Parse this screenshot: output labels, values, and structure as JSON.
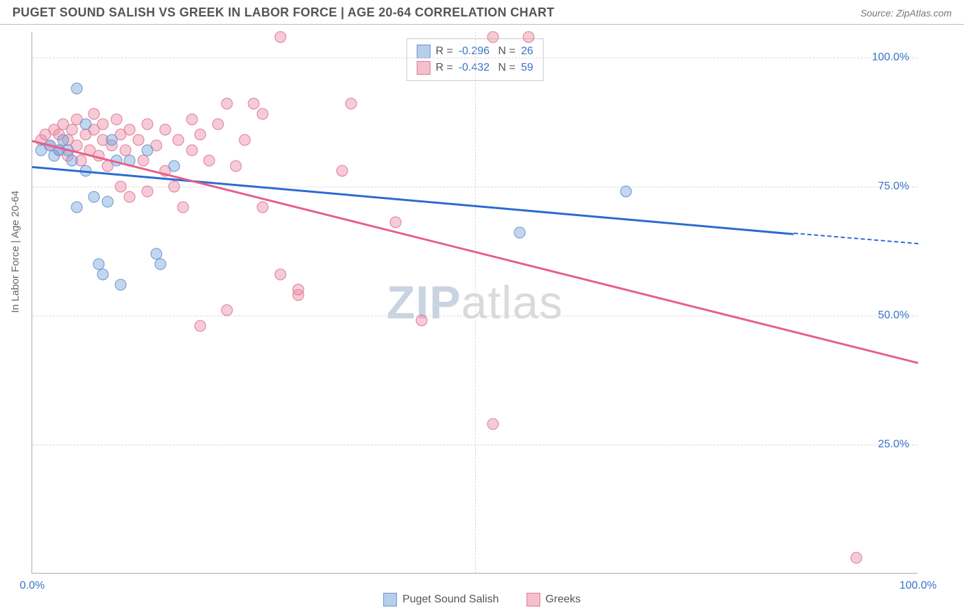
{
  "header": {
    "title": "PUGET SOUND SALISH VS GREEK IN LABOR FORCE | AGE 20-64 CORRELATION CHART",
    "source": "Source: ZipAtlas.com"
  },
  "chart": {
    "type": "scatter",
    "ylabel": "In Labor Force | Age 20-64",
    "xlim": [
      0,
      100
    ],
    "ylim": [
      0,
      105
    ],
    "xtick_labels": [
      "0.0%",
      "100.0%"
    ],
    "xtick_positions": [
      0,
      100
    ],
    "ytick_labels": [
      "25.0%",
      "50.0%",
      "75.0%",
      "100.0%"
    ],
    "ytick_positions": [
      25,
      50,
      75,
      100
    ],
    "grid_h": [
      25,
      50,
      75,
      100
    ],
    "grid_v": [
      50
    ],
    "background_color": "#ffffff",
    "grid_color": "#d8d8d8",
    "axis_color": "#aaaaaa",
    "watermark": {
      "bold": "ZIP",
      "rest": "atlas"
    },
    "series": [
      {
        "name": "Puget Sound Salish",
        "fill": "rgba(120,165,220,0.45)",
        "stroke": "#6a95cf",
        "line_color": "#2b6bd1",
        "marker_size": 17,
        "r_value": "-0.296",
        "n_value": "26",
        "trend": {
          "x1": 0,
          "y1": 79,
          "x2": 86,
          "y2": 66,
          "dash_x2": 100,
          "dash_y2": 64
        },
        "points": [
          [
            1,
            82
          ],
          [
            2,
            83
          ],
          [
            2.5,
            81
          ],
          [
            3,
            82
          ],
          [
            3.5,
            84
          ],
          [
            4,
            82
          ],
          [
            4.5,
            80
          ],
          [
            5,
            94
          ],
          [
            5,
            71
          ],
          [
            6,
            78
          ],
          [
            6,
            87
          ],
          [
            7,
            73
          ],
          [
            7.5,
            60
          ],
          [
            8,
            58
          ],
          [
            8.5,
            72
          ],
          [
            9,
            84
          ],
          [
            9.5,
            80
          ],
          [
            10,
            56
          ],
          [
            11,
            80
          ],
          [
            13,
            82
          ],
          [
            14,
            62
          ],
          [
            14.5,
            60
          ],
          [
            16,
            79
          ],
          [
            55,
            66
          ],
          [
            67,
            74
          ]
        ]
      },
      {
        "name": "Greeks",
        "fill": "rgba(235,140,165,0.45)",
        "stroke": "#dd7b99",
        "line_color": "#e75f8a",
        "marker_size": 17,
        "r_value": "-0.432",
        "n_value": "59",
        "trend": {
          "x1": 0,
          "y1": 84,
          "x2": 100,
          "y2": 41
        },
        "points": [
          [
            1,
            84
          ],
          [
            1.5,
            85
          ],
          [
            2,
            83
          ],
          [
            2.5,
            86
          ],
          [
            3,
            82
          ],
          [
            3,
            85
          ],
          [
            3.5,
            87
          ],
          [
            4,
            81
          ],
          [
            4,
            84
          ],
          [
            4.5,
            86
          ],
          [
            5,
            83
          ],
          [
            5,
            88
          ],
          [
            5.5,
            80
          ],
          [
            6,
            85
          ],
          [
            6.5,
            82
          ],
          [
            7,
            86
          ],
          [
            7,
            89
          ],
          [
            7.5,
            81
          ],
          [
            8,
            84
          ],
          [
            8,
            87
          ],
          [
            8.5,
            79
          ],
          [
            9,
            83
          ],
          [
            9.5,
            88
          ],
          [
            10,
            85
          ],
          [
            10,
            75
          ],
          [
            10.5,
            82
          ],
          [
            11,
            86
          ],
          [
            11,
            73
          ],
          [
            12,
            84
          ],
          [
            12.5,
            80
          ],
          [
            13,
            87
          ],
          [
            13,
            74
          ],
          [
            14,
            83
          ],
          [
            15,
            86
          ],
          [
            15,
            78
          ],
          [
            16,
            75
          ],
          [
            16.5,
            84
          ],
          [
            17,
            71
          ],
          [
            18,
            88
          ],
          [
            18,
            82
          ],
          [
            19,
            48
          ],
          [
            19,
            85
          ],
          [
            20,
            80
          ],
          [
            21,
            87
          ],
          [
            22,
            91
          ],
          [
            22,
            51
          ],
          [
            23,
            79
          ],
          [
            24,
            84
          ],
          [
            25,
            91
          ],
          [
            26,
            89
          ],
          [
            26,
            71
          ],
          [
            28,
            58
          ],
          [
            28,
            104
          ],
          [
            30,
            54
          ],
          [
            30,
            55
          ],
          [
            35,
            78
          ],
          [
            36,
            91
          ],
          [
            41,
            68
          ],
          [
            44,
            49
          ],
          [
            52,
            29
          ],
          [
            52,
            104
          ],
          [
            56,
            104
          ],
          [
            93,
            3
          ]
        ]
      }
    ],
    "legend_top": {
      "swatch_colors": [
        {
          "fill": "rgba(120,165,220,0.55)",
          "stroke": "#6a95cf"
        },
        {
          "fill": "rgba(235,140,165,0.55)",
          "stroke": "#dd7b99"
        }
      ]
    },
    "legend_bottom": {
      "items": [
        "Puget Sound Salish",
        "Greeks"
      ],
      "swatch_colors": [
        {
          "fill": "rgba(120,165,220,0.55)",
          "stroke": "#6a95cf"
        },
        {
          "fill": "rgba(235,140,165,0.55)",
          "stroke": "#dd7b99"
        }
      ]
    }
  }
}
